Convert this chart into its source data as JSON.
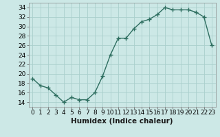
{
  "x": [
    0,
    1,
    2,
    3,
    4,
    5,
    6,
    7,
    8,
    9,
    10,
    11,
    12,
    13,
    14,
    15,
    16,
    17,
    18,
    19,
    20,
    21,
    22,
    23
  ],
  "y": [
    19,
    17.5,
    17,
    15.5,
    14,
    15,
    14.5,
    14.5,
    16,
    19.5,
    24,
    27.5,
    27.5,
    29.5,
    31,
    31.5,
    32.5,
    34,
    33.5,
    33.5,
    33.5,
    33,
    32,
    26
  ],
  "line_color": "#2e6e60",
  "marker": "+",
  "bg_color": "#cce8e6",
  "grid_color": "#aacfcc",
  "xlabel": "Humidex (Indice chaleur)",
  "xlim": [
    -0.5,
    23.5
  ],
  "ylim": [
    13.0,
    35.0
  ],
  "yticks": [
    14,
    16,
    18,
    20,
    22,
    24,
    26,
    28,
    30,
    32,
    34
  ],
  "xtick_labels": [
    "0",
    "1",
    "2",
    "3",
    "4",
    "5",
    "6",
    "7",
    "8",
    "9",
    "10",
    "11",
    "12",
    "13",
    "14",
    "15",
    "16",
    "17",
    "18",
    "19",
    "20",
    "21",
    "22",
    "23"
  ],
  "label_fontsize": 7.5,
  "tick_fontsize": 6.5,
  "line_width": 1.0,
  "marker_size": 4,
  "marker_edge_width": 1.0
}
